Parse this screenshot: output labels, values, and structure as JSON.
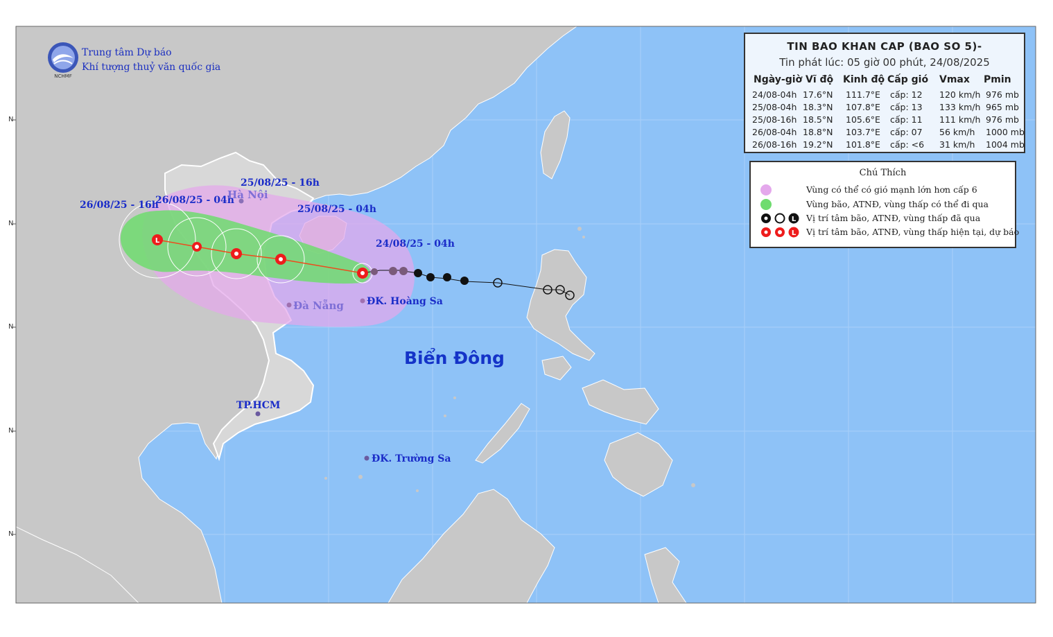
{
  "agency": {
    "line1": "Trung tâm Dự báo",
    "line2": "Khí tượng thuỷ văn quốc gia",
    "logo_text": "NCHMF"
  },
  "bulletin": {
    "title": "TIN BAO KHAN CAP (BAO SO 5)-",
    "issued": "Tin phát lúc: 05 giờ 00 phút, 24/08/2025",
    "headers": [
      "Ngày-giờ",
      "Vĩ độ",
      "Kinh độ",
      "Cấp gió",
      "Vmax",
      "Pmin"
    ],
    "rows": [
      [
        "24/08-04h",
        "17.6°N",
        "111.7°E",
        "cấp: 12",
        "120 km/h",
        "976 mb"
      ],
      [
        "25/08-04h",
        "18.3°N",
        "107.8°E",
        "cấp: 13",
        "133 km/h",
        "965 mb"
      ],
      [
        "25/08-16h",
        "18.5°N",
        "105.6°E",
        "cấp: 11",
        "111 km/h",
        "976 mb"
      ],
      [
        "26/08-04h",
        "18.8°N",
        "103.7°E",
        "cấp: 07",
        "56 km/h",
        "1000 mb"
      ],
      [
        "26/08-16h",
        "19.2°N",
        "101.8°E",
        "cấp: <6",
        "31 km/h",
        "1004 mb"
      ]
    ]
  },
  "legend": {
    "title": "Chú Thích",
    "items": [
      "Vùng có thể có gió mạnh lớn hơn cấp 6",
      "Vùng bão, ATNĐ, vùng thấp có thể đi qua",
      "Vị trí tâm bão, ATNĐ, vùng thấp đã qua",
      "Vị trí tâm bão, ATNĐ, vùng thấp hiện tại, dự báo"
    ],
    "colors": {
      "strong_wind_zone": "#e4a8ec",
      "storm_zone": "#6fdc6f",
      "past": "#111111",
      "forecast": "#ee1c1c"
    }
  },
  "time_labels": {
    "t1": "24/08/25 - 04h",
    "t2": "25/08/25 - 04h",
    "t3": "25/08/25 - 16h",
    "t4": "26/08/25 - 04h",
    "t5": "26/08/25 - 16h"
  },
  "places": {
    "hanoi": "Hà Nội",
    "danang": "Đà Nẵng",
    "hoangsa": "ĐK. Hoàng Sa",
    "hcm": "TP.HCM",
    "truongsa": "ĐK. Trường Sa"
  },
  "sea_name": "Biển Đông",
  "lat_tick_label": "N",
  "colors": {
    "ocean": "#8ec2f7",
    "land": "#c8c8c8",
    "vn_land": "#d4d4d4",
    "label_blue": "#1a2cc8"
  }
}
